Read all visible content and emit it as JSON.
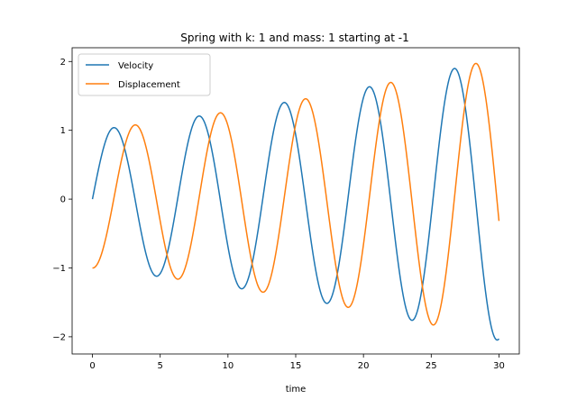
{
  "chart_data": {
    "type": "line",
    "title": "Spring with k: 1 and mass: 1 starting at -1",
    "xlabel": "time",
    "ylabel": "",
    "xlim": [
      -1.5,
      31.5
    ],
    "ylim": [
      -2.25,
      2.2
    ],
    "xticks": [
      0,
      5,
      10,
      15,
      20,
      25,
      30
    ],
    "yticks": [
      -2,
      -1,
      0,
      1,
      2
    ],
    "xtick_labels": [
      "0",
      "5",
      "10",
      "15",
      "20",
      "25",
      "30"
    ],
    "ytick_labels": [
      "−2",
      "−1",
      "0",
      "1",
      "2"
    ],
    "grid": false,
    "legend_position": "top-left",
    "model": {
      "k": 1,
      "mass": 1,
      "x0": -1,
      "v0": 0,
      "growth_rate_per_time": 0.024,
      "t_min": 0,
      "t_max": 30
    },
    "series": [
      {
        "name": "Velocity",
        "color": "#1f77b4",
        "form": "sin",
        "initial_amplitude": 1.0
      },
      {
        "name": "Displacement",
        "color": "#ff7f0e",
        "form": "neg_cos",
        "initial_amplitude": 1.0
      }
    ]
  }
}
